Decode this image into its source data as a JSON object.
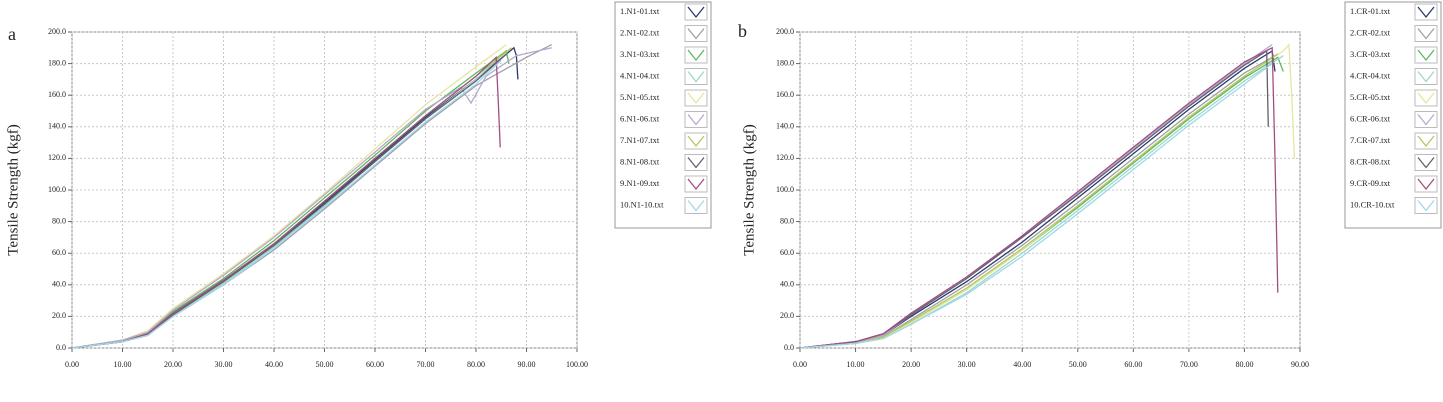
{
  "chart_data": [
    {
      "type": "line",
      "panel_label": "a",
      "y_label": "Tensile Strength (kgf)",
      "xlim": [
        0,
        100
      ],
      "ylim": [
        0,
        200
      ],
      "grid": true,
      "xticks": [
        {
          "value": 0,
          "label": "0.00"
        },
        {
          "value": 10,
          "label": "10.00"
        },
        {
          "value": 20,
          "label": "20.00"
        },
        {
          "value": 30,
          "label": "30.00"
        },
        {
          "value": 40,
          "label": "40.00"
        },
        {
          "value": 50,
          "label": "50.00"
        },
        {
          "value": 60,
          "label": "60.00"
        },
        {
          "value": 70,
          "label": "70.00"
        },
        {
          "value": 80,
          "label": "80.00"
        },
        {
          "value": 90,
          "label": "90.00"
        },
        {
          "value": 100,
          "label": "100.00"
        }
      ],
      "yticks": [
        {
          "value": 0,
          "label": "0.0"
        },
        {
          "value": 20,
          "label": "20.0"
        },
        {
          "value": 40,
          "label": "40.0"
        },
        {
          "value": 60,
          "label": "60.0"
        },
        {
          "value": 80,
          "label": "80.0"
        },
        {
          "value": 100,
          "label": "100.0"
        },
        {
          "value": 120,
          "label": "120.0"
        },
        {
          "value": 140,
          "label": "140.0"
        },
        {
          "value": 160,
          "label": "160.0"
        },
        {
          "value": 180,
          "label": "180.0"
        },
        {
          "value": 200,
          "label": "200.0"
        }
      ],
      "series": [
        {
          "name": "1.N1-01.txt",
          "color": "#2b3a6b",
          "x": [
            0,
            10,
            15,
            20,
            30,
            40,
            50,
            60,
            70,
            80,
            87.5,
            88,
            88.3
          ],
          "values": [
            0,
            4,
            9,
            22,
            42,
            65,
            92,
            119,
            146,
            170,
            190,
            185,
            170
          ]
        },
        {
          "name": "2.N1-02.txt",
          "color": "#a0a0a8",
          "x": [
            0,
            10,
            15,
            20,
            30,
            40,
            50,
            60,
            70,
            80,
            90,
            95
          ],
          "values": [
            0,
            4,
            8,
            20,
            40,
            62,
            88,
            115,
            142,
            166,
            184,
            192
          ]
        },
        {
          "name": "3.N1-03.txt",
          "color": "#5cb85c",
          "x": [
            0,
            10,
            15,
            20,
            30,
            40,
            50,
            60,
            70,
            80,
            86,
            86.5
          ],
          "values": [
            0,
            5,
            10,
            23,
            44,
            68,
            95,
            122,
            150,
            174,
            188,
            180
          ]
        },
        {
          "name": "4.N1-04.txt",
          "color": "#9fd6cc",
          "x": [
            0,
            10,
            15,
            20,
            30,
            40,
            50,
            60,
            70,
            80,
            85
          ],
          "values": [
            0,
            4,
            8,
            21,
            41,
            64,
            90,
            118,
            145,
            170,
            185
          ]
        },
        {
          "name": "5.N1-05.txt",
          "color": "#e6e6a0",
          "x": [
            0,
            10,
            15,
            20,
            30,
            40,
            50,
            60,
            70,
            80,
            86
          ],
          "values": [
            0,
            5,
            11,
            25,
            47,
            71,
            98,
            126,
            154,
            178,
            192
          ]
        },
        {
          "name": "6.N1-06.txt",
          "color": "#b8a8d0",
          "x": [
            0,
            10,
            15,
            20,
            30,
            40,
            50,
            60,
            70,
            77,
            79,
            82,
            88,
            95
          ],
          "values": [
            0,
            5,
            10,
            24,
            46,
            70,
            97,
            124,
            151,
            165,
            155,
            172,
            185,
            190
          ]
        },
        {
          "name": "7.N1-07.txt",
          "color": "#b4c860",
          "x": [
            0,
            10,
            15,
            20,
            30,
            40,
            50,
            60,
            70,
            80,
            87
          ],
          "values": [
            0,
            4,
            9,
            22,
            43,
            66,
            93,
            120,
            147,
            172,
            190
          ]
        },
        {
          "name": "8.N1-08.txt",
          "color": "#606070",
          "x": [
            0,
            10,
            15,
            20,
            30,
            40,
            50,
            60,
            70,
            80,
            86
          ],
          "values": [
            0,
            4,
            9,
            21,
            42,
            65,
            91,
            118,
            145,
            169,
            186
          ]
        },
        {
          "name": "9.N1-09.txt",
          "color": "#a05080",
          "x": [
            0,
            10,
            15,
            20,
            30,
            40,
            50,
            60,
            70,
            80,
            84,
            84.5,
            84.8
          ],
          "values": [
            0,
            4,
            9,
            22,
            43,
            66,
            93,
            120,
            147,
            172,
            184,
            150,
            127
          ]
        },
        {
          "name": "10.N1-10.txt",
          "color": "#9fd8e8",
          "x": [
            0,
            10,
            15,
            20,
            30,
            40,
            50,
            60,
            70,
            80,
            85
          ],
          "values": [
            0,
            4,
            8,
            20,
            40,
            63,
            89,
            116,
            143,
            167,
            182
          ]
        }
      ]
    },
    {
      "type": "line",
      "panel_label": "b",
      "y_label": "Tensile Strength (kgf)",
      "xlim": [
        0,
        90
      ],
      "ylim": [
        0,
        200
      ],
      "grid": true,
      "xticks": [
        {
          "value": 0,
          "label": "0.00"
        },
        {
          "value": 10,
          "label": "10.00"
        },
        {
          "value": 20,
          "label": "20.00"
        },
        {
          "value": 30,
          "label": "30.00"
        },
        {
          "value": 40,
          "label": "40.00"
        },
        {
          "value": 50,
          "label": "50.00"
        },
        {
          "value": 60,
          "label": "60.00"
        },
        {
          "value": 70,
          "label": "70.00"
        },
        {
          "value": 80,
          "label": "80.00"
        },
        {
          "value": 90,
          "label": "90.00"
        }
      ],
      "yticks": [
        {
          "value": 0,
          "label": "0.0"
        },
        {
          "value": 20,
          "label": "20.0"
        },
        {
          "value": 40,
          "label": "40.0"
        },
        {
          "value": 60,
          "label": "60.0"
        },
        {
          "value": 80,
          "label": "80.0"
        },
        {
          "value": 100,
          "label": "100.0"
        },
        {
          "value": 120,
          "label": "120.0"
        },
        {
          "value": 140,
          "label": "140.0"
        },
        {
          "value": 160,
          "label": "160.0"
        },
        {
          "value": 180,
          "label": "180.0"
        },
        {
          "value": 200,
          "label": "200.0"
        }
      ],
      "series": [
        {
          "name": "1.CR-01.txt",
          "color": "#2b3a6b",
          "x": [
            0,
            10,
            15,
            20,
            30,
            40,
            50,
            60,
            70,
            80,
            85,
            85.5
          ],
          "values": [
            0,
            4,
            8,
            20,
            42,
            67,
            95,
            123,
            151,
            177,
            188,
            175
          ]
        },
        {
          "name": "2.CR-02.txt",
          "color": "#a0a0a8",
          "x": [
            0,
            10,
            15,
            20,
            30,
            40,
            50,
            60,
            70,
            80,
            86
          ],
          "values": [
            0,
            3,
            7,
            18,
            40,
            65,
            92,
            120,
            148,
            174,
            186
          ]
        },
        {
          "name": "3.CR-03.txt",
          "color": "#5cb85c",
          "x": [
            0,
            10,
            15,
            20,
            30,
            40,
            50,
            60,
            70,
            80,
            86,
            87
          ],
          "values": [
            0,
            3,
            6,
            16,
            37,
            62,
            89,
            117,
            145,
            171,
            184,
            175
          ]
        },
        {
          "name": "4.CR-04.txt",
          "color": "#9fd6cc",
          "x": [
            0,
            10,
            15,
            20,
            30,
            40,
            50,
            60,
            70,
            80,
            87
          ],
          "values": [
            0,
            3,
            6,
            15,
            35,
            60,
            87,
            115,
            143,
            169,
            185
          ]
        },
        {
          "name": "5.CR-05.txt",
          "color": "#e6e6a0",
          "x": [
            0,
            10,
            15,
            20,
            30,
            40,
            50,
            60,
            70,
            80,
            87,
            88,
            88.5,
            89
          ],
          "values": [
            0,
            3,
            6,
            16,
            37,
            62,
            90,
            118,
            146,
            172,
            188,
            192,
            160,
            120
          ]
        },
        {
          "name": "6.CR-06.txt",
          "color": "#b8a8d0",
          "x": [
            0,
            10,
            15,
            20,
            30,
            40,
            50,
            60,
            70,
            80,
            85
          ],
          "values": [
            0,
            4,
            8,
            21,
            44,
            70,
            98,
            126,
            154,
            180,
            192
          ]
        },
        {
          "name": "7.CR-07.txt",
          "color": "#b4c860",
          "x": [
            0,
            10,
            15,
            20,
            30,
            40,
            50,
            60,
            70,
            80,
            86
          ],
          "values": [
            0,
            3,
            7,
            17,
            38,
            63,
            90,
            118,
            146,
            172,
            186
          ]
        },
        {
          "name": "8.CR-08.txt",
          "color": "#606070",
          "x": [
            0,
            10,
            15,
            20,
            30,
            40,
            50,
            60,
            70,
            80,
            84,
            84.3
          ],
          "values": [
            0,
            4,
            9,
            21,
            44,
            70,
            97,
            125,
            153,
            179,
            188,
            140
          ]
        },
        {
          "name": "9.CR-09.txt",
          "color": "#a05080",
          "x": [
            0,
            10,
            15,
            20,
            30,
            40,
            50,
            60,
            70,
            80,
            85,
            85.5,
            86
          ],
          "values": [
            0,
            4,
            9,
            22,
            45,
            71,
            99,
            127,
            155,
            181,
            190,
            120,
            35
          ]
        },
        {
          "name": "10.CR-10.txt",
          "color": "#9fd8e8",
          "x": [
            0,
            10,
            15,
            20,
            30,
            40,
            50,
            60,
            70,
            80,
            85
          ],
          "values": [
            0,
            3,
            6,
            15,
            34,
            58,
            85,
            113,
            141,
            167,
            180
          ]
        }
      ]
    }
  ]
}
